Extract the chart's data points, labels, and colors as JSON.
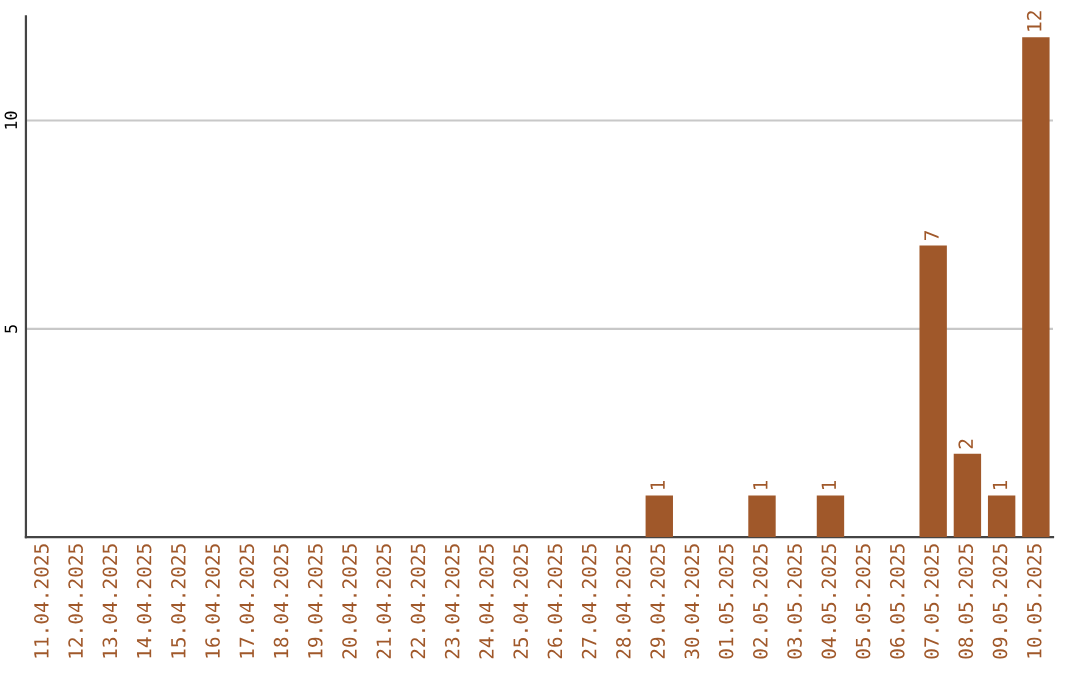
{
  "chart_data": {
    "type": "bar",
    "categories": [
      "11.04.2025",
      "12.04.2025",
      "13.04.2025",
      "14.04.2025",
      "15.04.2025",
      "16.04.2025",
      "17.04.2025",
      "18.04.2025",
      "19.04.2025",
      "20.04.2025",
      "21.04.2025",
      "22.04.2025",
      "23.04.2025",
      "24.04.2025",
      "25.04.2025",
      "26.04.2025",
      "27.04.2025",
      "28.04.2025",
      "29.04.2025",
      "30.04.2025",
      "01.05.2025",
      "02.05.2025",
      "03.05.2025",
      "04.05.2025",
      "05.05.2025",
      "06.05.2025",
      "07.05.2025",
      "08.05.2025",
      "09.05.2025",
      "10.05.2025"
    ],
    "values": [
      0,
      0,
      0,
      0,
      0,
      0,
      0,
      0,
      0,
      0,
      0,
      0,
      0,
      0,
      0,
      0,
      0,
      0,
      1,
      0,
      0,
      1,
      0,
      1,
      0,
      0,
      7,
      2,
      1,
      12
    ],
    "value_labels": [
      null,
      null,
      null,
      null,
      null,
      null,
      null,
      null,
      null,
      null,
      null,
      null,
      null,
      null,
      null,
      null,
      null,
      null,
      "1",
      null,
      null,
      "1",
      null,
      "1",
      null,
      null,
      "7",
      "2",
      "1",
      "12"
    ],
    "color": "#a0582a",
    "ylim": [
      0,
      12.5
    ],
    "yticks": [
      5,
      10
    ],
    "grid": "y"
  }
}
